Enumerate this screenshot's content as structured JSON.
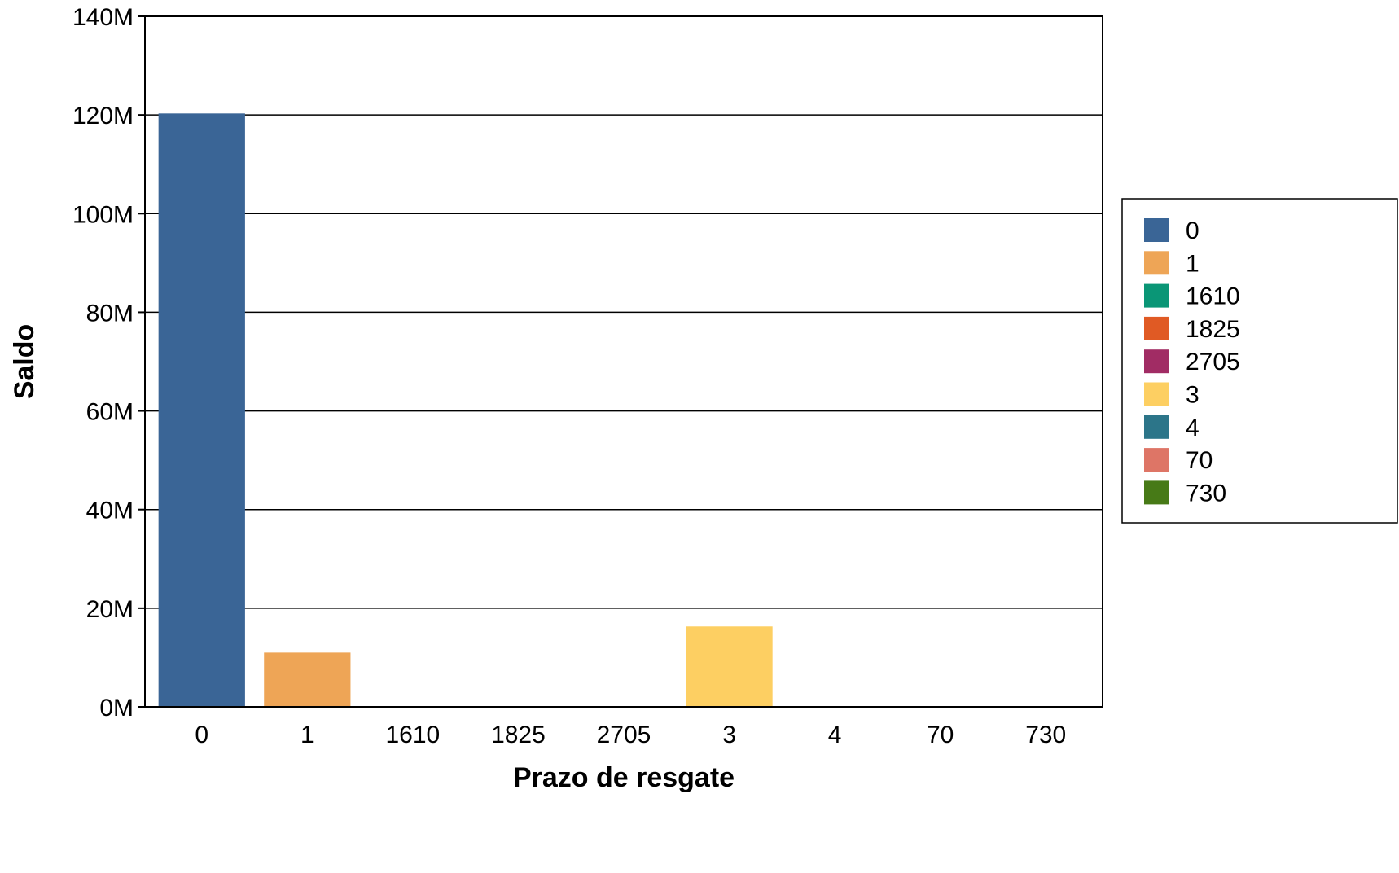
{
  "chart_data": {
    "type": "bar",
    "title": "",
    "xlabel": "Prazo de resgate",
    "ylabel": "Saldo",
    "categories": [
      "0",
      "1",
      "1610",
      "1825",
      "2705",
      "3",
      "4",
      "70",
      "730"
    ],
    "values": [
      120300000,
      11000000,
      0,
      0,
      0,
      16300000,
      0,
      0,
      0
    ],
    "colors": [
      "#3a6596",
      "#eea556",
      "#0a9676",
      "#e05a24",
      "#a12c64",
      "#fdcf62",
      "#2c7589",
      "#de7566",
      "#477a17"
    ],
    "ylim": [
      0,
      140000000
    ],
    "yticks": [
      0,
      20000000,
      40000000,
      60000000,
      80000000,
      100000000,
      120000000,
      140000000
    ],
    "ytick_labels": [
      "0M",
      "20M",
      "40M",
      "60M",
      "80M",
      "100M",
      "120M",
      "140M"
    ],
    "grid": true,
    "legend": {
      "placement": "right",
      "entries": [
        "0",
        "1",
        "1610",
        "1825",
        "2705",
        "3",
        "4",
        "70",
        "730"
      ]
    }
  }
}
